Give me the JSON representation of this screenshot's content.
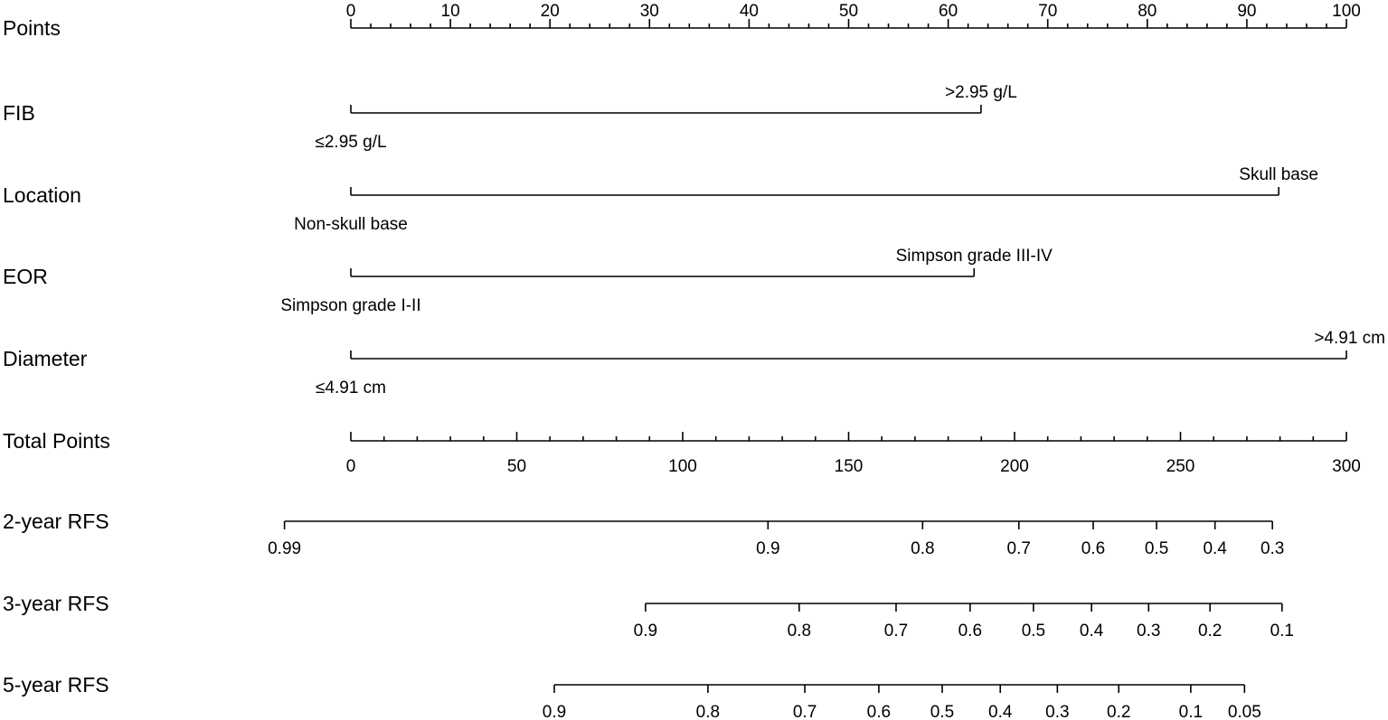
{
  "chart_data": {
    "type": "nomogram",
    "rows": [
      {
        "label": "Points",
        "kind": "axis",
        "range": [
          0,
          100
        ],
        "major_ticks": [
          0,
          10,
          20,
          30,
          40,
          50,
          60,
          70,
          80,
          90,
          100
        ],
        "minor_step": 2,
        "tick_labels_position": "above"
      },
      {
        "label": "FIB",
        "kind": "categorical",
        "levels": [
          {
            "label": "≤2.95 g/L",
            "points": 0,
            "side": "below"
          },
          {
            "label": ">2.95 g/L",
            "points": 63.3,
            "side": "above"
          }
        ]
      },
      {
        "label": "Location",
        "kind": "categorical",
        "levels": [
          {
            "label": "Non-skull base",
            "points": 0,
            "side": "below"
          },
          {
            "label": "Skull base",
            "points": 93.2,
            "side": "above"
          }
        ]
      },
      {
        "label": "EOR",
        "kind": "categorical",
        "levels": [
          {
            "label": "Simpson grade I-II",
            "points": 0,
            "side": "below"
          },
          {
            "label": "Simpson grade III-IV",
            "points": 62.6,
            "side": "above"
          }
        ]
      },
      {
        "label": "Diameter",
        "kind": "categorical",
        "levels": [
          {
            "label": "≤4.91 cm",
            "points": 0,
            "side": "below"
          },
          {
            "label": ">4.91 cm",
            "points": 100,
            "side": "above"
          }
        ]
      },
      {
        "label": "Total Points",
        "kind": "axis",
        "range": [
          0,
          300
        ],
        "major_ticks": [
          0,
          50,
          100,
          150,
          200,
          250,
          300
        ],
        "minor_step": 10,
        "tick_labels_position": "below"
      },
      {
        "label": "2-year RFS",
        "kind": "probability",
        "ticks": [
          {
            "label": "0.99",
            "total_points": -20
          },
          {
            "label": "0.9",
            "total_points": 125.7
          },
          {
            "label": "0.8",
            "total_points": 172.3
          },
          {
            "label": "0.7",
            "total_points": 201.3
          },
          {
            "label": "0.6",
            "total_points": 223.7
          },
          {
            "label": "0.5",
            "total_points": 242.8
          },
          {
            "label": "0.4",
            "total_points": 260.4
          },
          {
            "label": "0.3",
            "total_points": 277.7
          }
        ]
      },
      {
        "label": "3-year RFS",
        "kind": "probability",
        "ticks": [
          {
            "label": "0.9",
            "total_points": 88.8
          },
          {
            "label": "0.8",
            "total_points": 135.1
          },
          {
            "label": "0.7",
            "total_points": 164.3
          },
          {
            "label": "0.6",
            "total_points": 186.6
          },
          {
            "label": "0.5",
            "total_points": 205.7
          },
          {
            "label": "0.4",
            "total_points": 223.2
          },
          {
            "label": "0.3",
            "total_points": 240.4
          },
          {
            "label": "0.2",
            "total_points": 258.9
          },
          {
            "label": "0.1",
            "total_points": 280.6
          }
        ]
      },
      {
        "label": "5-year RFS",
        "kind": "probability",
        "ticks": [
          {
            "label": "0.9",
            "total_points": 61.3
          },
          {
            "label": "0.8",
            "total_points": 107.6
          },
          {
            "label": "0.7",
            "total_points": 136.8
          },
          {
            "label": "0.6",
            "total_points": 159.1
          },
          {
            "label": "0.5",
            "total_points": 178.2
          },
          {
            "label": "0.4",
            "total_points": 195.7
          },
          {
            "label": "0.3",
            "total_points": 212.9
          },
          {
            "label": "0.2",
            "total_points": 231.4
          },
          {
            "label": "0.1",
            "total_points": 253.1
          },
          {
            "label": "0.05",
            "total_points": 269.3
          }
        ]
      }
    ]
  }
}
